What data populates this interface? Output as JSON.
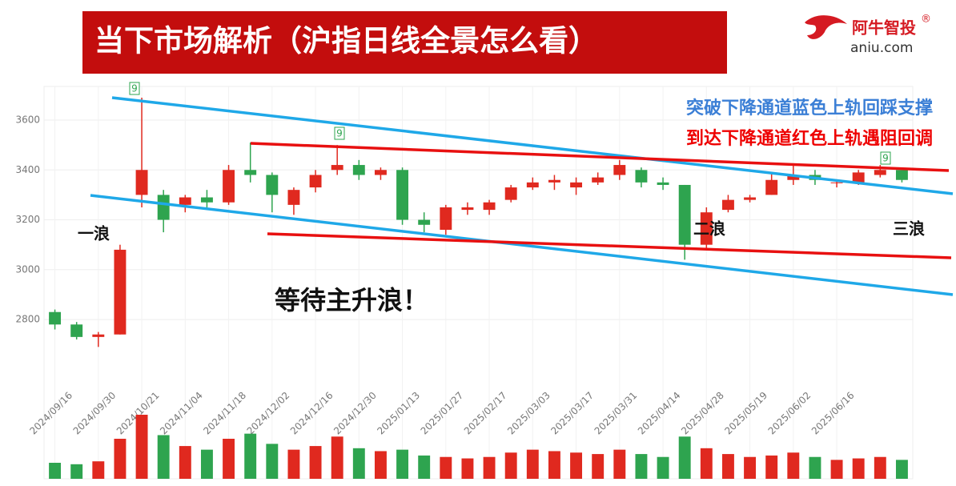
{
  "header": {
    "title": "当下市场解析（沪指日线全景怎么看）",
    "logo": "阿牛智投",
    "logo_mark": "®",
    "logo_url": "aniu.com"
  },
  "chart_data": {
    "type": "candlestick",
    "categories": [
      "2024/09/16",
      null,
      "2024/09/30",
      null,
      "2024/10/21",
      null,
      "2024/11/04",
      null,
      "2024/11/18",
      null,
      "2024/12/02",
      null,
      "2024/12/16",
      null,
      "2024/12/30",
      null,
      "2025/01/13",
      null,
      "2025/01/27",
      null,
      "2025/02/17",
      null,
      "2025/03/03",
      null,
      "2025/03/17",
      null,
      "2025/03/31",
      null,
      "2025/04/14",
      null,
      "2025/04/28",
      null,
      "2025/05/19",
      null,
      "2025/06/02",
      null,
      "2025/06/16",
      null,
      null,
      null
    ],
    "open": [
      2830,
      2780,
      2730,
      2740,
      3300,
      3300,
      3260,
      3290,
      3270,
      3400,
      3380,
      3260,
      3330,
      3400,
      3420,
      3380,
      3400,
      3200,
      3160,
      3240,
      3240,
      3280,
      3330,
      3350,
      3330,
      3350,
      3380,
      3400,
      3350,
      3340,
      3100,
      3240,
      3280,
      3300,
      3360,
      3380,
      3350,
      3350,
      3380,
      3400
    ],
    "high": [
      2840,
      2790,
      2750,
      3100,
      3690,
      3320,
      3300,
      3320,
      3420,
      3510,
      3390,
      3330,
      3400,
      3500,
      3440,
      3410,
      3410,
      3230,
      3260,
      3270,
      3280,
      3340,
      3370,
      3380,
      3370,
      3390,
      3440,
      3410,
      3370,
      3340,
      3250,
      3300,
      3300,
      3390,
      3420,
      3400,
      3360,
      3400,
      3420,
      3400
    ],
    "low": [
      2760,
      2720,
      2690,
      2740,
      3250,
      3150,
      3230,
      3250,
      3260,
      3350,
      3230,
      3220,
      3310,
      3380,
      3360,
      3360,
      3180,
      3150,
      3140,
      3220,
      3220,
      3270,
      3320,
      3320,
      3300,
      3340,
      3360,
      3330,
      3320,
      3040,
      3080,
      3230,
      3270,
      3300,
      3340,
      3340,
      3330,
      3340,
      3370,
      3350
    ],
    "close": [
      2780,
      2730,
      2740,
      3080,
      3400,
      3200,
      3290,
      3270,
      3400,
      3380,
      3300,
      3320,
      3380,
      3420,
      3380,
      3400,
      3200,
      3180,
      3250,
      3250,
      3270,
      3330,
      3350,
      3360,
      3350,
      3370,
      3420,
      3350,
      3340,
      3100,
      3230,
      3280,
      3290,
      3360,
      3380,
      3360,
      3350,
      3390,
      3400,
      3360
    ],
    "volume": [
      22,
      20,
      24,
      55,
      88,
      60,
      45,
      40,
      55,
      62,
      48,
      40,
      45,
      58,
      42,
      38,
      40,
      32,
      30,
      28,
      30,
      36,
      40,
      38,
      36,
      34,
      40,
      34,
      30,
      58,
      42,
      34,
      30,
      32,
      36,
      30,
      26,
      28,
      30,
      26
    ],
    "up_color": "#e0291f",
    "down_color": "#2ea44f",
    "ylim": [
      2540,
      3735
    ],
    "yticks": [
      2800,
      3000,
      3200,
      3400,
      3600
    ],
    "grid": true,
    "annotations": {
      "wave1": "一浪",
      "wave2": "二浪",
      "wave3": "三浪",
      "main": "等待主升浪！",
      "blue_note": "突破下降通道蓝色上轨回踩支撑",
      "red_note": "到达下降通道红色上轨遇阻回调",
      "markers": [
        "9",
        "9",
        "9"
      ]
    }
  }
}
